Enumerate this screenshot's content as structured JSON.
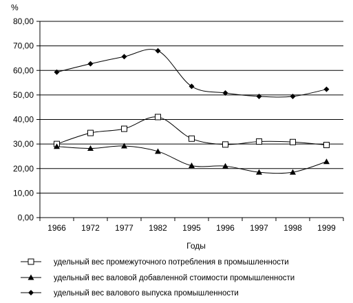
{
  "chart_data": {
    "type": "line",
    "ylabel": "%",
    "xlabel": "Годы",
    "categories": [
      "1966",
      "1972",
      "1977",
      "1982",
      "1995",
      "1996",
      "1997",
      "1998",
      "1999"
    ],
    "y_ticks": [
      "0,00",
      "10,00",
      "20,00",
      "30,00",
      "40,00",
      "50,00",
      "60,00",
      "70,00",
      "80,00"
    ],
    "ylim": [
      0,
      80
    ],
    "grid": "horizontal",
    "legend_position": "bottom",
    "series": [
      {
        "name": "удельный вес промежуточного потребления  в промышленности",
        "marker": "square-open",
        "values": [
          30.0,
          34.5,
          36.2,
          41.0,
          32.2,
          29.8,
          31.0,
          30.8,
          29.6
        ]
      },
      {
        "name": "удельный вес валовой добавленной стоимости промышленности",
        "marker": "triangle-filled",
        "values": [
          29.0,
          28.2,
          29.2,
          27.0,
          21.2,
          21.0,
          18.5,
          18.5,
          22.8
        ]
      },
      {
        "name": "удельный вес валового выпуска промышленности",
        "marker": "diamond-filled",
        "values": [
          59.3,
          62.7,
          65.6,
          68.0,
          53.5,
          50.8,
          49.4,
          49.4,
          52.3
        ]
      }
    ]
  }
}
